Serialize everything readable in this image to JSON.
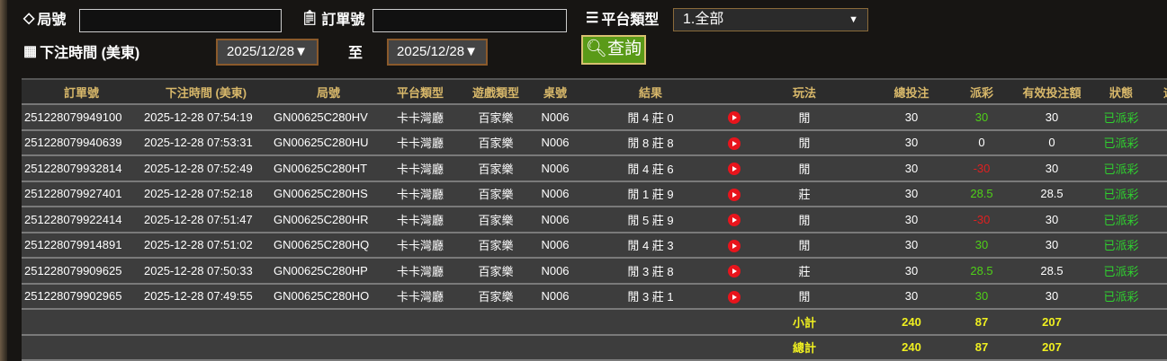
{
  "filters": {
    "round_label": "局號",
    "round_value": "",
    "order_label": "訂單號",
    "order_value": "",
    "platform_label": "平台類型",
    "platform_value": "1.全部",
    "time_label": "下注時間 (美東)",
    "date_from": "2025/12/28▼",
    "to_label": "至",
    "date_to": "2025/12/28▼",
    "search_label": "查詢"
  },
  "columns": [
    "訂單號",
    "下注時間 (美東)",
    "局號",
    "平台類型",
    "遊戲類型",
    "桌號",
    "結果",
    "",
    "玩法",
    "總投注",
    "派彩",
    "有效投注額",
    "狀態",
    "遊"
  ],
  "rows": [
    [
      "251228079949100",
      "2025-12-28 07:54:19",
      "GN00625C280HV",
      "卡卡灣廳",
      "百家樂",
      "N006",
      "閒 4 莊 0",
      "閒",
      "30",
      "30",
      "30",
      "已派彩"
    ],
    [
      "251228079940639",
      "2025-12-28 07:53:31",
      "GN00625C280HU",
      "卡卡灣廳",
      "百家樂",
      "N006",
      "閒 8 莊 8",
      "閒",
      "30",
      "0",
      "0",
      "已派彩"
    ],
    [
      "251228079932814",
      "2025-12-28 07:52:49",
      "GN00625C280HT",
      "卡卡灣廳",
      "百家樂",
      "N006",
      "閒 4 莊 6",
      "閒",
      "30",
      "-30",
      "30",
      "已派彩"
    ],
    [
      "251228079927401",
      "2025-12-28 07:52:18",
      "GN00625C280HS",
      "卡卡灣廳",
      "百家樂",
      "N006",
      "閒 1 莊 9",
      "莊",
      "30",
      "28.5",
      "28.5",
      "已派彩"
    ],
    [
      "251228079922414",
      "2025-12-28 07:51:47",
      "GN00625C280HR",
      "卡卡灣廳",
      "百家樂",
      "N006",
      "閒 5 莊 9",
      "閒",
      "30",
      "-30",
      "30",
      "已派彩"
    ],
    [
      "251228079914891",
      "2025-12-28 07:51:02",
      "GN00625C280HQ",
      "卡卡灣廳",
      "百家樂",
      "N006",
      "閒 4 莊 3",
      "閒",
      "30",
      "30",
      "30",
      "已派彩"
    ],
    [
      "251228079909625",
      "2025-12-28 07:50:33",
      "GN00625C280HP",
      "卡卡灣廳",
      "百家樂",
      "N006",
      "閒 3 莊 8",
      "莊",
      "30",
      "28.5",
      "28.5",
      "已派彩"
    ],
    [
      "251228079902965",
      "2025-12-28 07:49:55",
      "GN00625C280HO",
      "卡卡灣廳",
      "百家樂",
      "N006",
      "閒 3 莊 1",
      "閒",
      "30",
      "30",
      "30",
      "已派彩"
    ]
  ],
  "subtotal": {
    "label": "小計",
    "bet": "240",
    "payout": "87",
    "valid": "207"
  },
  "total": {
    "label": "總計",
    "bet": "240",
    "payout": "87",
    "valid": "207"
  },
  "colors": {
    "positive": "#4fd018",
    "negative": "#e02020",
    "status": "#2fd02f",
    "totals": "#f0f020",
    "header": "#d8b86a"
  }
}
